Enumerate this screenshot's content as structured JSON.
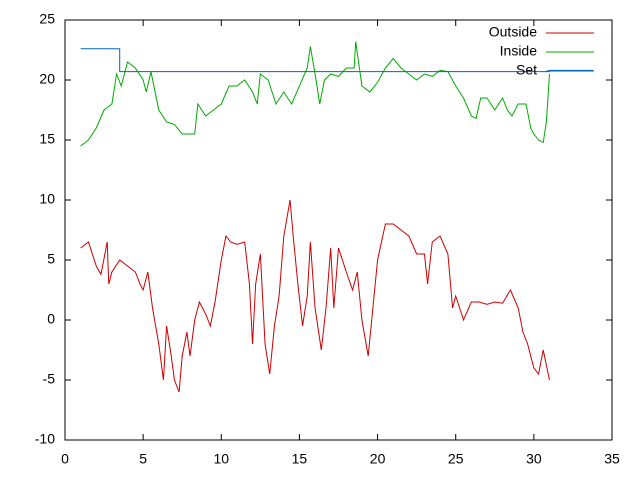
{
  "chart_data": {
    "type": "line",
    "xlim": [
      0,
      35
    ],
    "xticks": [
      0,
      5,
      10,
      15,
      20,
      25,
      30,
      35
    ],
    "ylim": [
      -10,
      25
    ],
    "yticks": [
      -10,
      -5,
      0,
      5,
      10,
      15,
      20,
      25
    ],
    "legend": "top-right",
    "series": [
      {
        "name": "Outside",
        "color": "#cc0000",
        "x": [
          1,
          1.5,
          2,
          2.3,
          2.7,
          2.8,
          3,
          3.5,
          4,
          4.5,
          4.8,
          5,
          5.3,
          5.6,
          6,
          6.3,
          6.5,
          6.8,
          7,
          7.3,
          7.5,
          7.8,
          8,
          8.3,
          8.6,
          9,
          9.3,
          9.6,
          10,
          10.3,
          10.6,
          11,
          11.5,
          11.8,
          12,
          12.2,
          12.5,
          12.8,
          13.1,
          13.4,
          13.7,
          14,
          14.4,
          14.6,
          14.9,
          15.2,
          15.5,
          15.7,
          16,
          16.4,
          16.7,
          17,
          17.2,
          17.5,
          18,
          18.4,
          18.7,
          19,
          19.4,
          19.7,
          20,
          20.5,
          21,
          21.5,
          22,
          22.5,
          23,
          23.2,
          23.5,
          24,
          24.5,
          24.8,
          25,
          25.5,
          26,
          26.5,
          27,
          27.5,
          28,
          28.5,
          29,
          29.3,
          29.6,
          30,
          30.3,
          30.6,
          31
        ],
        "values": [
          6,
          6.5,
          4.5,
          3.8,
          6.5,
          3,
          4,
          5,
          4.5,
          4,
          3,
          2.5,
          4,
          1,
          -2,
          -5,
          -0.5,
          -3,
          -5,
          -6,
          -3,
          -1,
          -3,
          0,
          1.5,
          0.5,
          -0.5,
          1.5,
          5,
          7,
          6.5,
          6.3,
          6.5,
          3,
          -2,
          3,
          5.5,
          -2,
          -4.5,
          -0.5,
          2,
          7,
          10,
          7,
          3,
          -0.5,
          2,
          6.5,
          1,
          -2.5,
          1,
          6,
          1,
          6,
          4,
          2.5,
          4,
          0,
          -3,
          1,
          5,
          8,
          8,
          7.5,
          7,
          5.5,
          5.5,
          3,
          6.5,
          7,
          5.5,
          1,
          2,
          0,
          1.5,
          1.5,
          1.3,
          1.5,
          1.4,
          2.5,
          1,
          -1,
          -2,
          -4,
          -4.5,
          -2.5,
          -5
        ]
      },
      {
        "name": "Inside",
        "color": "#00aa00",
        "x": [
          1,
          1.5,
          2,
          2.5,
          3,
          3.3,
          3.6,
          4,
          4.5,
          5,
          5.2,
          5.5,
          6,
          6.5,
          7,
          7.5,
          8,
          8.3,
          8.5,
          9,
          9.5,
          10,
          10.5,
          11,
          11.5,
          12,
          12.3,
          12.5,
          13,
          13.5,
          14,
          14.5,
          15,
          15.5,
          15.7,
          16,
          16.3,
          16.6,
          17,
          17.5,
          18,
          18.5,
          18.6,
          19,
          19.5,
          20,
          20.5,
          21,
          21.5,
          22,
          22.5,
          23,
          23.5,
          24,
          24.5,
          25,
          25.5,
          26,
          26.3,
          26.6,
          27,
          27.5,
          28,
          28.3,
          28.6,
          29,
          29.5,
          29.8,
          30,
          30.3,
          30.6,
          30.8,
          31
        ],
        "values": [
          14.5,
          15,
          16,
          17.5,
          18,
          20.5,
          19.5,
          21.5,
          21,
          20,
          19,
          20.7,
          17.5,
          16.5,
          16.3,
          15.5,
          15.5,
          15.5,
          18,
          17,
          17.5,
          18,
          19.5,
          19.5,
          20,
          19,
          18,
          20.5,
          20,
          18,
          19,
          18,
          19.5,
          21,
          22.8,
          20.5,
          18,
          20,
          20.5,
          20.3,
          21,
          21,
          23.2,
          19.5,
          19,
          19.8,
          21,
          21.8,
          21,
          20.5,
          20,
          20.5,
          20.3,
          20.8,
          20.7,
          19.5,
          18.5,
          17,
          16.8,
          18.5,
          18.5,
          17.5,
          18.5,
          17.5,
          17,
          18,
          18,
          16,
          15.5,
          15,
          14.8,
          16.5,
          20.5
        ]
      },
      {
        "name": "Set",
        "color": "#0066bb",
        "x": [
          1,
          3.5,
          3.5,
          31,
          31,
          33.8
        ],
        "values": [
          22.6,
          22.6,
          20.7,
          20.7,
          20.8,
          20.8
        ]
      }
    ]
  }
}
